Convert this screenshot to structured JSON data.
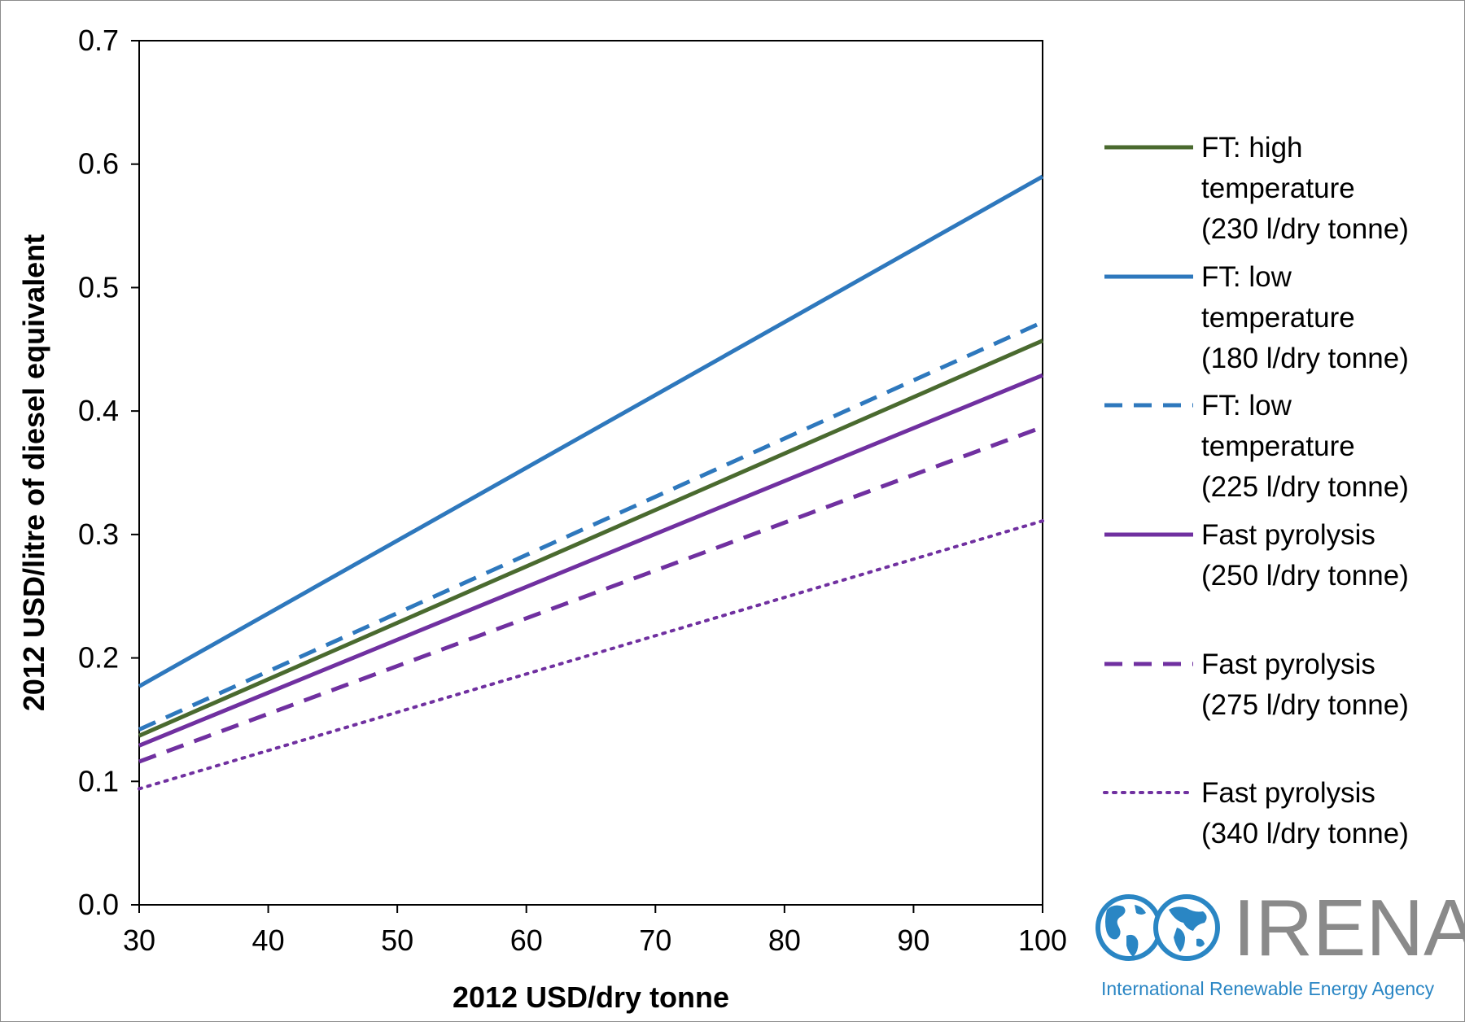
{
  "chart_data": {
    "type": "line",
    "xlabel": "2012 USD/dry tonne",
    "ylabel": "2012 USD/litre of diesel equivalent",
    "xlim": [
      30,
      100
    ],
    "ylim": [
      0,
      0.7
    ],
    "x_ticks": [
      "30",
      "40",
      "50",
      "60",
      "70",
      "80",
      "90",
      "100"
    ],
    "y_ticks": [
      "0.0",
      "0.1",
      "0.2",
      "0.3",
      "0.4",
      "0.5",
      "0.6",
      "0.7"
    ],
    "grid": false,
    "legend_position": "right",
    "series": [
      {
        "name": "FT: high temperature (230 l/dry tonne)",
        "legend_lines": [
          "FT: high",
          "temperature",
          "(230 l/dry tonne)"
        ],
        "color": "#4a6a2f",
        "style": "solid",
        "x": [
          30,
          100
        ],
        "y": [
          0.137,
          0.457
        ]
      },
      {
        "name": "FT: low temperature (180 l/dry tonne)",
        "legend_lines": [
          "FT: low",
          "temperature",
          "(180 l/dry tonne)"
        ],
        "color": "#2e78bd",
        "style": "solid",
        "x": [
          30,
          100
        ],
        "y": [
          0.177,
          0.59
        ]
      },
      {
        "name": "FT: low temperature (225 l/dry tonne)",
        "legend_lines": [
          "FT: low",
          "temperature",
          "(225 l/dry tonne)"
        ],
        "color": "#2e78bd",
        "style": "dashed",
        "x": [
          30,
          100
        ],
        "y": [
          0.142,
          0.472
        ]
      },
      {
        "name": "Fast pyrolysis (250 l/dry tonne)",
        "legend_lines": [
          "Fast pyrolysis",
          "(250 l/dry tonne)"
        ],
        "color": "#7030a0",
        "style": "solid",
        "x": [
          30,
          100
        ],
        "y": [
          0.129,
          0.429
        ]
      },
      {
        "name": "Fast pyrolysis (275 l/dry tonne)",
        "legend_lines": [
          "Fast pyrolysis",
          "(275 l/dry tonne)"
        ],
        "color": "#7030a0",
        "style": "dashed",
        "x": [
          30,
          100
        ],
        "y": [
          0.116,
          0.387
        ]
      },
      {
        "name": "Fast pyrolysis (340 l/dry tonne)",
        "legend_lines": [
          "Fast pyrolysis",
          "(340 l/dry tonne)"
        ],
        "color": "#7030a0",
        "style": "dotted",
        "x": [
          30,
          100
        ],
        "y": [
          0.094,
          0.311
        ]
      }
    ]
  },
  "logo": {
    "name": "IRENA",
    "tagline": "International Renewable Energy Agency",
    "icon": "globe-infinity-icon",
    "word_color": "#8a8a8a",
    "accent_color": "#2a86c4"
  }
}
